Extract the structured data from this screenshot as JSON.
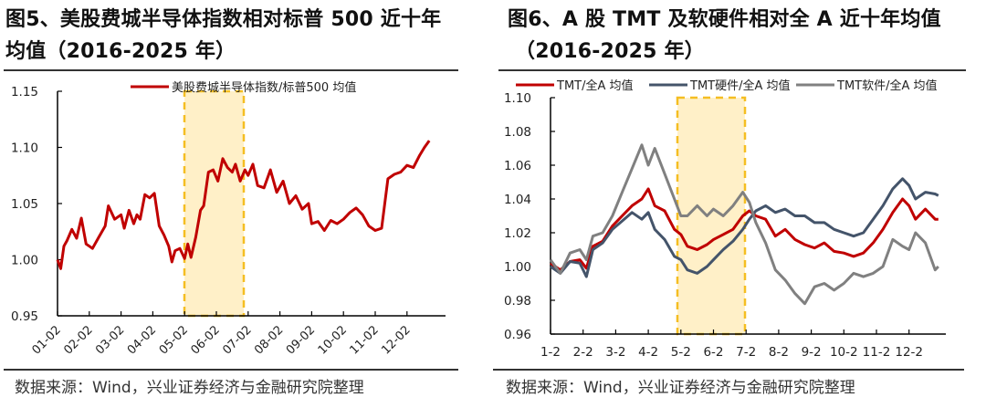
{
  "figures": [
    {
      "title_line1": "图5、美股费城半导体指数相对标普 500 近十年",
      "title_line2": "均值（2016-2025 年）",
      "source": "数据来源：Wind，兴业证券经济与金融研究院整理"
    },
    {
      "title_line1": "图6、A 股 TMT 及软硬件相对全 A 近十年均值",
      "title_line2": "（2016-2025 年）",
      "source": "数据来源：Wind，兴业证券经济与金融研究院整理"
    }
  ],
  "colors": {
    "red": "#C00000",
    "navy": "#44546A",
    "gray": "#808080",
    "highlight_fill": "#FFF0C8",
    "highlight_border": "#F5BE22"
  },
  "chart_data": [
    {
      "type": "line",
      "title": "图5、美股费城半导体指数相对标普 500 近十年均值（2016-2025 年）",
      "xlabel": "",
      "ylabel": "",
      "ylim": [
        0.95,
        1.15
      ],
      "yticks": [
        "0.95",
        "1.00",
        "1.05",
        "1.10",
        "1.15"
      ],
      "categories": [
        "01-02",
        "02-02",
        "03-02",
        "04-02",
        "05-02",
        "06-02",
        "07-02",
        "08-02",
        "09-02",
        "10-02",
        "11-02",
        "12-02"
      ],
      "legend_position": "top",
      "highlight_region": [
        "05-02",
        "06-30"
      ],
      "series": [
        {
          "name": "美股费城半导体指数/标普500 均值",
          "color": "#C00000",
          "x": [
            0,
            0.1,
            0.2,
            0.3,
            0.45,
            0.6,
            0.75,
            0.9,
            1.0,
            1.1,
            1.3,
            1.5,
            1.6,
            1.8,
            2.0,
            2.1,
            2.25,
            2.4,
            2.5,
            2.6,
            2.75,
            2.9,
            3.05,
            3.2,
            3.35,
            3.5,
            3.6,
            3.7,
            3.85,
            4.0,
            4.1,
            4.2,
            4.35,
            4.5,
            4.6,
            4.75,
            4.9,
            5.05,
            5.2,
            5.35,
            5.5,
            5.6,
            5.75,
            5.9,
            6.0,
            6.15,
            6.3,
            6.5,
            6.7,
            6.9,
            7.1,
            7.3,
            7.5,
            7.7,
            7.9,
            8.0,
            8.2,
            8.4,
            8.6,
            8.8,
            9.0,
            9.2,
            9.4,
            9.6,
            9.8,
            10.0,
            10.2,
            10.4,
            10.6,
            10.8,
            11.0,
            11.2,
            11.4,
            11.55,
            11.7
          ],
          "values": [
            1.0,
            0.992,
            1.012,
            1.017,
            1.027,
            1.019,
            1.037,
            1.014,
            1.012,
            1.01,
            1.02,
            1.03,
            1.048,
            1.036,
            1.04,
            1.028,
            1.044,
            1.032,
            1.04,
            1.036,
            1.058,
            1.055,
            1.059,
            1.03,
            1.022,
            1.012,
            0.998,
            1.008,
            1.01,
            1.001,
            1.014,
            1.002,
            1.02,
            1.044,
            1.048,
            1.078,
            1.08,
            1.07,
            1.09,
            1.082,
            1.078,
            1.085,
            1.07,
            1.08,
            1.075,
            1.085,
            1.066,
            1.064,
            1.08,
            1.06,
            1.07,
            1.05,
            1.057,
            1.045,
            1.05,
            1.032,
            1.034,
            1.026,
            1.035,
            1.032,
            1.036,
            1.042,
            1.046,
            1.04,
            1.03,
            1.026,
            1.028,
            1.072,
            1.076,
            1.078,
            1.084,
            1.082,
            1.093,
            1.1,
            1.106
          ]
        }
      ]
    },
    {
      "type": "line",
      "title": "图6、A 股 TMT 及软硬件相对全 A 近十年均值（2016-2025 年）",
      "xlabel": "",
      "ylabel": "",
      "ylim": [
        0.96,
        1.1
      ],
      "yticks": [
        "0.96",
        "0.98",
        "1.00",
        "1.02",
        "1.04",
        "1.06",
        "1.08",
        "1.10"
      ],
      "categories": [
        "1-2",
        "2-2",
        "3-2",
        "4-2",
        "5-2",
        "6-2",
        "7-2",
        "8-2",
        "9-2",
        "10-2",
        "11-2",
        "12-2"
      ],
      "legend_position": "top",
      "highlight_region": [
        "5-2",
        "7-2"
      ],
      "series": [
        {
          "name": "TMT/全A 均值",
          "color": "#C00000",
          "x": [
            0,
            0.3,
            0.6,
            0.9,
            1.1,
            1.3,
            1.6,
            1.9,
            2.2,
            2.5,
            2.8,
            3.0,
            3.2,
            3.5,
            3.8,
            4.0,
            4.2,
            4.5,
            4.8,
            5.0,
            5.3,
            5.6,
            5.9,
            6.1,
            6.3,
            6.6,
            6.9,
            7.2,
            7.5,
            7.8,
            8.1,
            8.4,
            8.7,
            9.0,
            9.3,
            9.6,
            9.9,
            10.2,
            10.5,
            10.8,
            11.0,
            11.2,
            11.5,
            11.8,
            11.9
          ],
          "values": [
            1.002,
            0.998,
            1.003,
            1.004,
            0.999,
            1.012,
            1.015,
            1.024,
            1.03,
            1.036,
            1.04,
            1.046,
            1.036,
            1.033,
            1.022,
            1.019,
            1.012,
            1.01,
            1.013,
            1.016,
            1.019,
            1.022,
            1.03,
            1.033,
            1.03,
            1.028,
            1.018,
            1.022,
            1.016,
            1.013,
            1.011,
            1.014,
            1.009,
            1.008,
            1.006,
            1.008,
            1.014,
            1.022,
            1.032,
            1.04,
            1.036,
            1.028,
            1.034,
            1.028,
            1.028
          ]
        },
        {
          "name": "TMT硬件/全A 均值",
          "color": "#44546A",
          "x": [
            0,
            0.3,
            0.6,
            0.9,
            1.1,
            1.3,
            1.6,
            1.9,
            2.2,
            2.5,
            2.8,
            3.0,
            3.2,
            3.5,
            3.8,
            4.0,
            4.2,
            4.5,
            4.8,
            5.0,
            5.3,
            5.6,
            5.9,
            6.1,
            6.3,
            6.6,
            6.9,
            7.2,
            7.5,
            7.8,
            8.1,
            8.4,
            8.7,
            9.0,
            9.3,
            9.6,
            9.9,
            10.2,
            10.5,
            10.8,
            11.0,
            11.2,
            11.5,
            11.8,
            11.9
          ],
          "values": [
            1.0,
            0.996,
            1.003,
            1.002,
            0.994,
            1.01,
            1.014,
            1.022,
            1.027,
            1.032,
            1.028,
            1.032,
            1.022,
            1.016,
            1.006,
            1.004,
            0.998,
            0.996,
            1.0,
            1.004,
            1.01,
            1.015,
            1.022,
            1.028,
            1.033,
            1.036,
            1.032,
            1.034,
            1.03,
            1.03,
            1.026,
            1.026,
            1.022,
            1.02,
            1.018,
            1.02,
            1.028,
            1.036,
            1.046,
            1.052,
            1.048,
            1.04,
            1.044,
            1.043,
            1.042
          ]
        },
        {
          "name": "TMT软件/全A 均值",
          "color": "#808080",
          "x": [
            0,
            0.3,
            0.6,
            0.9,
            1.1,
            1.3,
            1.6,
            1.9,
            2.2,
            2.5,
            2.8,
            3.0,
            3.2,
            3.5,
            3.8,
            4.0,
            4.2,
            4.5,
            4.8,
            5.0,
            5.3,
            5.6,
            5.9,
            6.1,
            6.3,
            6.6,
            6.9,
            7.2,
            7.5,
            7.8,
            8.1,
            8.4,
            8.7,
            9.0,
            9.3,
            9.6,
            9.9,
            10.2,
            10.5,
            10.8,
            11.0,
            11.2,
            11.5,
            11.8,
            11.9
          ],
          "values": [
            1.004,
            0.996,
            1.008,
            1.01,
            1.004,
            1.018,
            1.02,
            1.03,
            1.044,
            1.058,
            1.072,
            1.06,
            1.07,
            1.055,
            1.04,
            1.03,
            1.03,
            1.036,
            1.03,
            1.034,
            1.03,
            1.036,
            1.044,
            1.038,
            1.026,
            1.014,
            0.998,
            0.992,
            0.984,
            0.978,
            0.988,
            0.99,
            0.986,
            0.99,
            0.996,
            0.994,
            0.996,
            1.0,
            1.016,
            1.012,
            1.01,
            1.02,
            1.014,
            0.998,
            1.0
          ]
        }
      ]
    }
  ]
}
